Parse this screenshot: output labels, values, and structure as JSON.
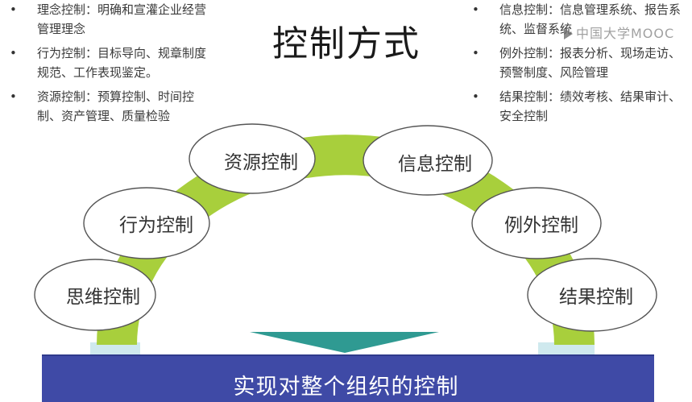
{
  "title": "控制方式",
  "left_notes": [
    {
      "text": "理念控制：明确和宣灌企业经营管理理念"
    },
    {
      "text": "行为控制：目标导向、规章制度规范、工作表现鉴定。"
    },
    {
      "text": "资源控制：预算控制、时间控制、资产管理、质量检验"
    }
  ],
  "right_notes": [
    {
      "text": "信息控制：信息管理系统、报告系统、监督系统"
    },
    {
      "text": "例外控制：报表分析、现场走访、预警制度、风险管理"
    },
    {
      "text": "结果控制：绩效考核、结果审计、安全控制"
    }
  ],
  "ovals": {
    "siwei": "思维控制",
    "xingwei": "行为控制",
    "ziyuan": "资源控制",
    "xinxi": "信息控制",
    "liwai": "例外控制",
    "jieguo": "结果控制"
  },
  "banner": "实现对整个组织的控制",
  "watermark": "中国大学MOOC",
  "colors": {
    "arc": "#a8cf3c",
    "banner": "#3f4aa6",
    "arrow": "#2f9a92",
    "pillar": "#cfe9ee"
  }
}
